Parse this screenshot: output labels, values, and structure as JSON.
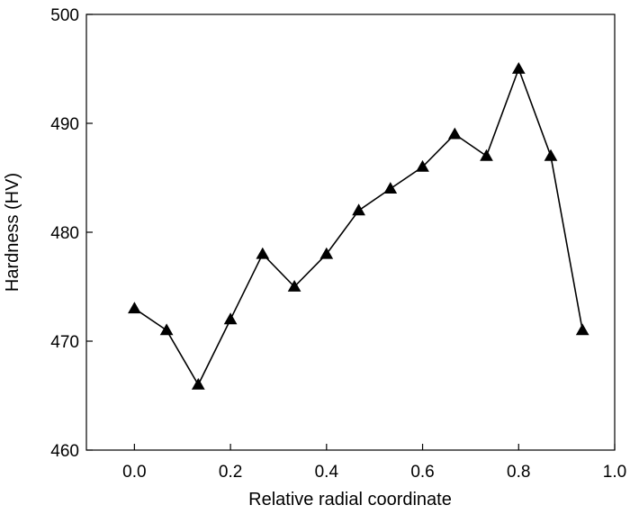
{
  "chart_data": {
    "type": "line",
    "title": "",
    "xlabel": "Relative radial coordinate",
    "ylabel": "Hardness (HV)",
    "xlim": [
      -0.1,
      1.0
    ],
    "ylim": [
      460,
      500
    ],
    "xticks": [
      0.0,
      0.2,
      0.4,
      0.6,
      0.8,
      1.0
    ],
    "xtick_labels": [
      "0.0",
      "0.2",
      "0.4",
      "0.6",
      "0.8",
      "1.0"
    ],
    "yticks": [
      460,
      470,
      480,
      490,
      500
    ],
    "ytick_labels": [
      "460",
      "470",
      "480",
      "490",
      "500"
    ],
    "grid": false,
    "legend": "none",
    "marker": "filled-triangle",
    "line_color": "#000000",
    "series": [
      {
        "x": [
          0.0,
          0.067,
          0.133,
          0.2,
          0.267,
          0.333,
          0.4,
          0.467,
          0.533,
          0.6,
          0.667,
          0.733,
          0.8,
          0.867,
          0.933
        ],
        "y": [
          473,
          471,
          466,
          472,
          478,
          475,
          478,
          482,
          484,
          486,
          489,
          487,
          495,
          487,
          471
        ]
      }
    ]
  }
}
